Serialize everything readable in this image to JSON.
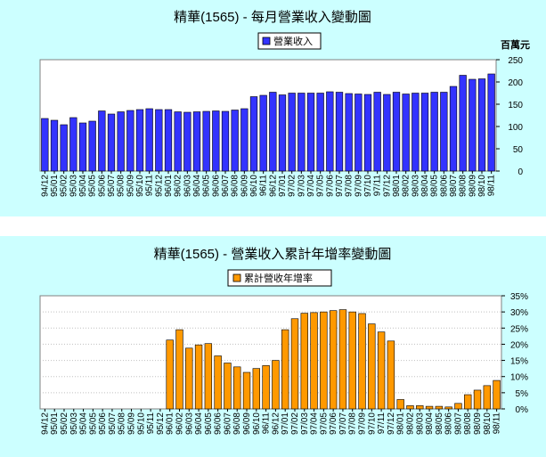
{
  "chart_data": [
    {
      "type": "bar",
      "title": "精華(1565) - 每月營業收入變動圖",
      "unit_label": "百萬元",
      "legend": "營業收入",
      "color": "#3333ff",
      "ylim": [
        0,
        250
      ],
      "yticks": [
        0,
        50,
        100,
        150,
        200,
        250
      ],
      "categories": [
        "94/12",
        "95/01",
        "95/02",
        "95/03",
        "95/04",
        "95/05",
        "95/06",
        "95/07",
        "95/08",
        "95/09",
        "95/10",
        "95/11",
        "95/12",
        "96/01",
        "96/02",
        "96/03",
        "96/04",
        "96/05",
        "96/06",
        "96/07",
        "96/08",
        "96/09",
        "96/10",
        "96/11",
        "96/12",
        "97/01",
        "97/02",
        "97/03",
        "97/04",
        "97/05",
        "97/06",
        "97/07",
        "97/08",
        "97/09",
        "97/10",
        "97/11",
        "97/12",
        "98/01",
        "98/02",
        "98/03",
        "98/04",
        "98/05",
        "98/06",
        "98/07",
        "98/08",
        "98/09",
        "98/10",
        "98/11"
      ],
      "values": [
        118,
        114,
        104,
        120,
        108,
        112,
        135,
        128,
        133,
        136,
        138,
        140,
        138,
        138,
        133,
        132,
        133,
        134,
        135,
        134,
        137,
        140,
        167,
        170,
        177,
        171,
        175,
        175,
        175,
        175,
        178,
        177,
        174,
        173,
        172,
        177,
        172,
        177,
        173,
        175,
        175,
        177,
        177,
        190,
        215,
        206,
        207,
        218
      ]
    },
    {
      "type": "bar",
      "title": "精華(1565) -  營業收入累計年增率變動圖",
      "legend": "累計營收年增率",
      "color": "#ff9900",
      "ylim": [
        0,
        35
      ],
      "yticks": [
        "0%",
        "5%",
        "10%",
        "15%",
        "20%",
        "25%",
        "30%",
        "35%"
      ],
      "categories": [
        "94/12",
        "95/01",
        "95/02",
        "95/03",
        "95/04",
        "95/05",
        "95/06",
        "95/07",
        "95/08",
        "95/09",
        "95/10",
        "95/11",
        "95/12",
        "96/01",
        "96/02",
        "96/03",
        "96/04",
        "96/05",
        "96/06",
        "96/07",
        "96/08",
        "96/09",
        "96/10",
        "96/11",
        "96/12",
        "97/01",
        "97/02",
        "97/03",
        "97/04",
        "97/05",
        "97/06",
        "97/07",
        "97/08",
        "97/09",
        "97/10",
        "97/11",
        "97/12",
        "98/01",
        "98/02",
        "98/03",
        "98/04",
        "98/05",
        "98/06",
        "98/07",
        "98/08",
        "98/09",
        "98/10",
        "98/11"
      ],
      "values": [
        0,
        0,
        0,
        0,
        0,
        0,
        0,
        0,
        0,
        0,
        0,
        0,
        0,
        21.3,
        24.5,
        18.8,
        19.8,
        20.2,
        16.4,
        14.2,
        13.0,
        11.3,
        12.5,
        13.4,
        15.0,
        24.5,
        27.9,
        29.6,
        29.8,
        30.0,
        30.4,
        30.7,
        30.0,
        29.5,
        26.3,
        23.8,
        21.0,
        2.9,
        1.0,
        1.0,
        0.8,
        0.8,
        0.6,
        1.7,
        4.4,
        5.8,
        7.2,
        8.8
      ]
    }
  ]
}
